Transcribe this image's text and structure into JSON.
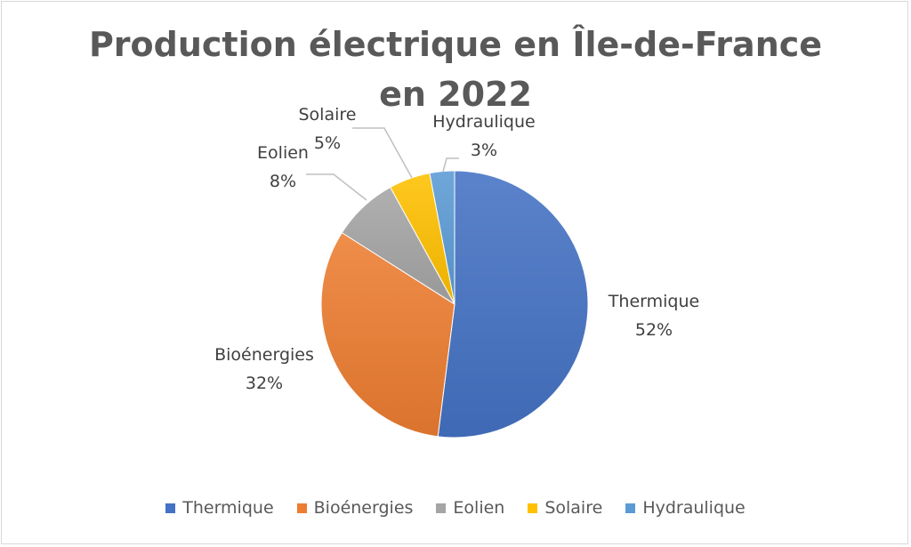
{
  "chart_data": {
    "type": "pie",
    "title": "Production électrique en Île-de-France en 2022",
    "categories": [
      "Thermique",
      "Bioénergies",
      "Eolien",
      "Solaire",
      "Hydraulique"
    ],
    "values": [
      52,
      32,
      8,
      5,
      3
    ],
    "value_labels": [
      "52%",
      "32%",
      "8%",
      "5%",
      "3%"
    ],
    "colors": [
      "#4472c4",
      "#ed7d31",
      "#a5a5a5",
      "#ffc000",
      "#5b9bd5"
    ],
    "legend": "bottom",
    "start_angle": "top, clockwise"
  }
}
